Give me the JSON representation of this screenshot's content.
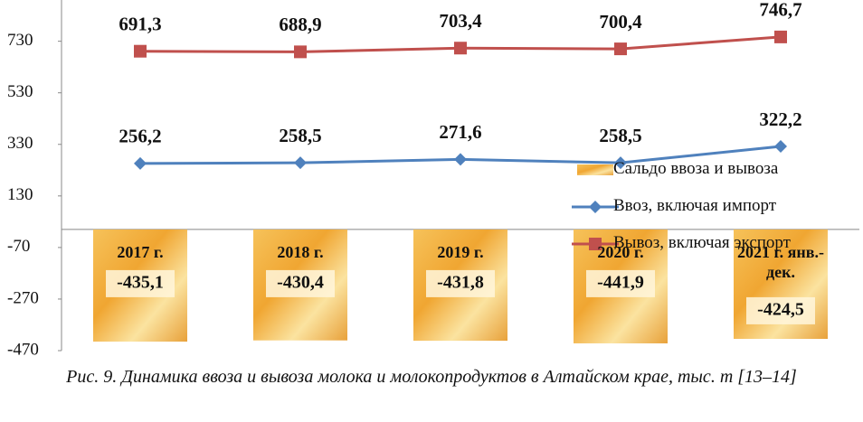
{
  "chart_data": {
    "type": "combo",
    "categories": [
      "2017 г.",
      "2018 г.",
      "2019 г.",
      "2020 г.",
      "2021 г. янв.-дек."
    ],
    "series": [
      {
        "name": "Сальдо ввоза и вывоза",
        "type": "bar",
        "color": "#f0a632",
        "values": [
          -435.1,
          -430.4,
          -431.8,
          -441.9,
          -424.5
        ],
        "value_labels": [
          "-435,1",
          "-430,4",
          "-431,8",
          "-441,9",
          "-424,5"
        ]
      },
      {
        "name": "Ввоз, включая импорт",
        "type": "line",
        "marker": "diamond",
        "color": "#4f81bd",
        "values": [
          256.2,
          258.5,
          271.6,
          258.5,
          322.2
        ],
        "value_labels": [
          "256,2",
          "258,5",
          "271,6",
          "258,5",
          "322,2"
        ]
      },
      {
        "name": "Вывоз, включая экспорт",
        "type": "line",
        "marker": "square",
        "color": "#c0504d",
        "values": [
          691.3,
          688.9,
          703.4,
          700.4,
          746.7
        ],
        "value_labels": [
          "691,3",
          "688,9",
          "703,4",
          "700,4",
          "746,7"
        ]
      }
    ],
    "ylim": [
      -470,
      890
    ],
    "yticks": [
      -470,
      -270,
      -70,
      130,
      330,
      530,
      730
    ],
    "legend": "right"
  },
  "caption": "Рис. 9. Динамика ввоза и вывоза молока и молокопродуктов в Алтайском крае, тыс. т [13–14]"
}
